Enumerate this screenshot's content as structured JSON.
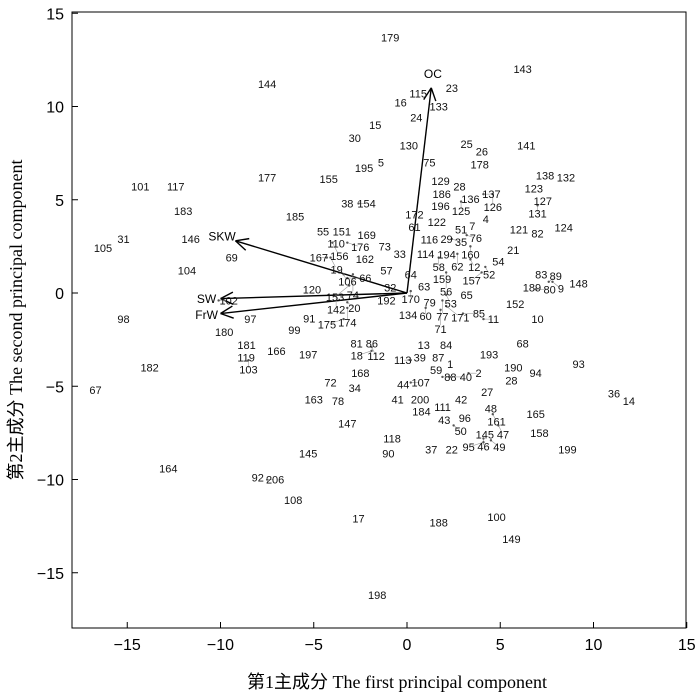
{
  "chart_data": {
    "type": "scatter",
    "title": "",
    "xlabel": "第1主成分 The first principal component",
    "ylabel": "第2主成分 The second principal component",
    "xlim": [
      -18,
      15
    ],
    "ylim": [
      -18,
      15
    ],
    "xticks": [
      "−15",
      "−10",
      "−5",
      "0",
      "5",
      "10",
      "15"
    ],
    "xtick_values": [
      -15,
      -10,
      -5,
      0,
      5,
      10,
      15
    ],
    "yticks": [
      "−15",
      "−10",
      "−5",
      "0",
      "5",
      "10",
      "15"
    ],
    "ytick_values": [
      -15,
      -10,
      -5,
      0,
      5,
      10,
      15
    ],
    "grid": false,
    "loadings": [
      {
        "name": "OC",
        "x": 1.3,
        "y": 11.0
      },
      {
        "name": "SKW",
        "x": -9.2,
        "y": 2.8
      },
      {
        "name": "SW",
        "x": -10.0,
        "y": -0.3
      },
      {
        "name": "FrW",
        "x": -10.0,
        "y": -1.1
      }
    ],
    "points": [
      [
        "179",
        -0.9,
        13.7
      ],
      [
        "143",
        6.2,
        12.0
      ],
      [
        "144",
        -7.5,
        11.2
      ],
      [
        "23",
        2.3,
        11.0
      ],
      [
        "115",
        0.6,
        10.7
      ],
      [
        "16",
        -0.3,
        10.3
      ],
      [
        "133",
        1.7,
        10.0
      ],
      [
        "24",
        0.5,
        9.4
      ],
      [
        "15",
        -1.7,
        9.0
      ],
      [
        "30",
        -2.8,
        8.3
      ],
      [
        "130",
        0.1,
        7.9
      ],
      [
        "25",
        3.2,
        8.0
      ],
      [
        "26",
        3.8,
        7.6
      ],
      [
        "141",
        6.4,
        7.9
      ],
      [
        "5",
        -1.4,
        7.0
      ],
      [
        "195",
        -2.3,
        6.7
      ],
      [
        "75",
        1.2,
        7.0
      ],
      [
        "178",
        3.9,
        6.9
      ],
      [
        "138",
        7.4,
        6.3
      ],
      [
        "132",
        8.2,
        6.2
      ],
      [
        "177",
        -7.5,
        6.2
      ],
      [
        "155",
        -4.2,
        6.1
      ],
      [
        "101",
        -14.3,
        5.7
      ],
      [
        "117",
        -12.4,
        5.7
      ],
      [
        "129",
        1.8,
        6.0
      ],
      [
        "28",
        2.6,
        5.7
      ],
      [
        "123",
        6.8,
        5.6
      ],
      [
        "186",
        1.9,
        5.4
      ],
      [
        "136",
        3.4,
        5.3
      ],
      [
        "137",
        4.1,
        5.3
      ],
      [
        "126",
        4.6,
        5.3
      ],
      [
        "127",
        7.2,
        5.1
      ],
      [
        "196",
        1.8,
        5.0
      ],
      [
        "125",
        2.9,
        4.9
      ],
      [
        "131",
        7.0,
        4.7
      ],
      [
        "183",
        -12.0,
        4.4
      ],
      [
        "38",
        -3.2,
        4.8
      ],
      [
        "154",
        -2.6,
        4.8
      ],
      [
        "4",
        4.1,
        4.2
      ],
      [
        "124",
        8.4,
        3.5
      ],
      [
        "185",
        -6.0,
        4.1
      ],
      [
        "172",
        0.4,
        4.2
      ],
      [
        "61",
        0.4,
        3.8
      ],
      [
        "122",
        1.6,
        3.8
      ],
      [
        "121",
        6.0,
        3.4
      ],
      [
        "82",
        7.0,
        3.2
      ],
      [
        "51",
        2.9,
        3.4
      ],
      [
        "7",
        3.5,
        3.6
      ],
      [
        "76",
        3.2,
        3.1
      ],
      [
        "146",
        -11.6,
        2.9
      ],
      [
        "31",
        -15.2,
        2.9
      ],
      [
        "105",
        -16.3,
        2.4
      ],
      [
        "55",
        -4.5,
        3.3
      ],
      [
        "151",
        -3.6,
        3.3
      ],
      [
        "110",
        -3.8,
        2.9
      ],
      [
        "156",
        -4.0,
        2.7
      ],
      [
        "176",
        -3.2,
        2.7
      ],
      [
        "169",
        -2.0,
        2.8
      ],
      [
        "73",
        -1.3,
        2.5
      ],
      [
        "116",
        1.1,
        2.9
      ],
      [
        "29",
        1.8,
        2.9
      ],
      [
        "35",
        2.4,
        2.9
      ],
      [
        "160",
        3.4,
        2.5
      ],
      [
        "21",
        5.7,
        2.3
      ],
      [
        "104",
        -11.8,
        1.2
      ],
      [
        "69",
        -9.4,
        1.9
      ],
      [
        "167",
        -4.3,
        1.9
      ],
      [
        "19",
        -4.1,
        1.9
      ],
      [
        "162",
        -2.3,
        1.9
      ],
      [
        "33",
        -0.6,
        2.1
      ],
      [
        "114",
        1.0,
        2.1
      ],
      [
        "194",
        2.0,
        2.3
      ],
      [
        "58",
        1.7,
        1.9
      ],
      [
        "62",
        2.7,
        2.1
      ],
      [
        "12",
        3.4,
        1.8
      ],
      [
        "54",
        4.9,
        1.7
      ],
      [
        "52",
        4.2,
        1.4
      ],
      [
        "157",
        4.0,
        1.1
      ],
      [
        "57",
        -1.1,
        1.2
      ],
      [
        "64",
        0.2,
        1.0
      ],
      [
        "159",
        1.8,
        0.9
      ],
      [
        "56",
        2.1,
        1.1
      ],
      [
        "63",
        1.0,
        0.5
      ],
      [
        "106",
        -3.4,
        1.0
      ],
      [
        "66",
        -3.2,
        0.8
      ],
      [
        "74",
        -2.9,
        1.0
      ],
      [
        "153",
        -3.1,
        0.4
      ],
      [
        "83",
        7.2,
        1.0
      ],
      [
        "189",
        6.7,
        0.3
      ],
      [
        "80",
        6.9,
        0.2
      ],
      [
        "89",
        7.6,
        0.6
      ],
      [
        "9",
        7.8,
        0.6
      ],
      [
        "148",
        9.2,
        0.5
      ],
      [
        "120",
        -5.1,
        0.2
      ],
      [
        "142",
        -3.8,
        -0.1
      ],
      [
        "32",
        -0.9,
        0.3
      ],
      [
        "170",
        0.2,
        0.1
      ],
      [
        "53",
        2.1,
        -0.1
      ],
      [
        "65",
        3.2,
        -0.1
      ],
      [
        "102",
        -10.1,
        -0.4
      ],
      [
        "20",
        -3.2,
        -0.5
      ],
      [
        "174",
        -3.2,
        -0.8
      ],
      [
        "192",
        -1.1,
        -0.4
      ],
      [
        "79",
        1.0,
        -0.5
      ],
      [
        "77",
        1.9,
        -0.4
      ],
      [
        "171",
        2.1,
        -0.7
      ],
      [
        "60",
        1.0,
        -0.8
      ],
      [
        "71",
        1.8,
        -0.9
      ],
      [
        "152",
        5.8,
        -0.6
      ],
      [
        "98",
        -15.2,
        -1.4
      ],
      [
        "97",
        -8.4,
        -1.4
      ],
      [
        "175",
        -3.4,
        -1.4
      ],
      [
        "134",
        0.1,
        -1.1
      ],
      [
        "85",
        3.0,
        -1.1
      ],
      [
        "11",
        4.1,
        -1.4
      ],
      [
        "10",
        7.0,
        -1.4
      ],
      [
        "91",
        -5.2,
        -1.3
      ],
      [
        "99",
        -6.0,
        -1.9
      ],
      [
        "180",
        -9.8,
        -2.1
      ],
      [
        "181",
        -8.6,
        -2.8
      ],
      [
        "119",
        -8.7,
        -3.4
      ],
      [
        "103",
        -8.5,
        -3.6
      ],
      [
        "166",
        -7.0,
        -3.1
      ],
      [
        "197",
        -5.3,
        -3.3
      ],
      [
        "81",
        -2.7,
        -2.7
      ],
      [
        "86",
        -2.1,
        -2.7
      ],
      [
        "112",
        -1.9,
        -2.9
      ],
      [
        "18",
        -1.9,
        -3.1
      ],
      [
        "13",
        0.9,
        -2.8
      ],
      [
        "84",
        2.1,
        -2.8
      ],
      [
        "68",
        6.2,
        -2.7
      ],
      [
        "182",
        -13.8,
        -4.0
      ],
      [
        "193",
        4.4,
        -3.3
      ],
      [
        "39",
        0.6,
        -3.3
      ],
      [
        "113",
        0.2,
        -3.6
      ],
      [
        "87",
        1.6,
        -3.4
      ],
      [
        "59",
        1.4,
        -3.8
      ],
      [
        "1",
        2.1,
        -3.8
      ],
      [
        "190",
        5.7,
        -4.0
      ],
      [
        "28",
        5.6,
        -4.7
      ],
      [
        "94",
        6.9,
        -4.3
      ],
      [
        "93",
        9.2,
        -3.8
      ],
      [
        "168",
        -2.5,
        -4.3
      ],
      [
        "88",
        1.9,
        -4.5
      ],
      [
        "40",
        2.3,
        -4.5
      ],
      [
        "2",
        3.3,
        -4.3
      ],
      [
        "67",
        -16.7,
        -5.2
      ],
      [
        "72",
        -4.1,
        -4.8
      ],
      [
        "34",
        -2.8,
        -5.1
      ],
      [
        "44",
        -0.2,
        -4.9
      ],
      [
        "107",
        0.2,
        -4.8
      ],
      [
        "27",
        4.3,
        -5.3
      ],
      [
        "36",
        11.1,
        -5.4
      ],
      [
        "14",
        11.9,
        -5.8
      ],
      [
        "163",
        -5.0,
        -5.7
      ],
      [
        "78",
        -3.7,
        -5.8
      ],
      [
        "41",
        -0.5,
        -5.7
      ],
      [
        "200",
        0.7,
        -5.7
      ],
      [
        "184",
        0.7,
        -6.3
      ],
      [
        "111",
        1.8,
        -6.1
      ],
      [
        "42",
        2.9,
        -5.7
      ],
      [
        "48",
        4.5,
        -6.2
      ],
      [
        "161",
        4.6,
        -6.5
      ],
      [
        "165",
        6.9,
        -6.5
      ],
      [
        "43",
        2.0,
        -6.8
      ],
      [
        "96",
        3.1,
        -6.7
      ],
      [
        "50",
        2.5,
        -7.1
      ],
      [
        "47",
        4.9,
        -7.1
      ],
      [
        "145",
        4.4,
        -7.4
      ],
      [
        "46",
        4.1,
        -7.8
      ],
      [
        "49",
        4.5,
        -7.9
      ],
      [
        "95",
        4.1,
        -8.0
      ],
      [
        "147",
        -3.2,
        -7.0
      ],
      [
        "158",
        7.1,
        -7.5
      ],
      [
        "118",
        -0.8,
        -7.8
      ],
      [
        "37",
        1.3,
        -8.4
      ],
      [
        "22",
        2.4,
        -8.4
      ],
      [
        "90",
        -1.0,
        -8.6
      ],
      [
        "145",
        -5.3,
        -8.6
      ],
      [
        "199",
        8.6,
        -8.4
      ],
      [
        "164",
        -12.8,
        -9.4
      ],
      [
        "92",
        -8.0,
        -9.9
      ],
      [
        "206",
        -7.5,
        -10.0
      ],
      [
        "108",
        -6.1,
        -11.1
      ],
      [
        "100",
        4.8,
        -12.0
      ],
      [
        "17",
        -2.6,
        -12.1
      ],
      [
        "188",
        1.7,
        -12.3
      ],
      [
        "149",
        5.6,
        -13.2
      ],
      [
        "198",
        -1.6,
        -16.2
      ]
    ]
  }
}
